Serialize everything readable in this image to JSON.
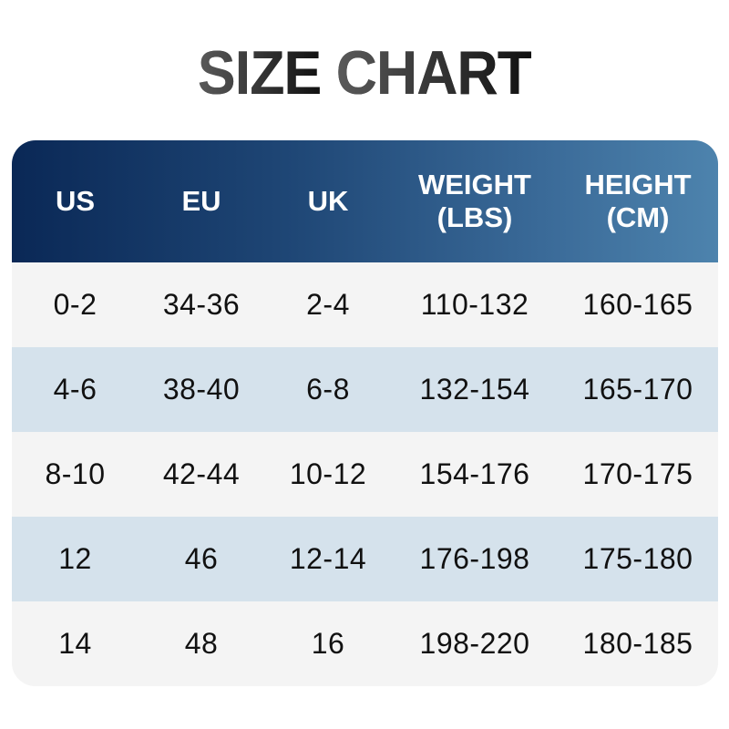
{
  "title": {
    "part1": "SIZE",
    "part2": "CHART"
  },
  "colors": {
    "header_start": "#0a2856",
    "header_end": "#4d83ad",
    "row_light": "#f4f4f4",
    "row_blue": "#d5e2ec"
  },
  "headers": [
    {
      "line1": "US",
      "line2": ""
    },
    {
      "line1": "EU",
      "line2": ""
    },
    {
      "line1": "UK",
      "line2": ""
    },
    {
      "line1": "WEIGHT",
      "line2": "(LBS)"
    },
    {
      "line1": "HEIGHT",
      "line2": "(CM)"
    }
  ],
  "rows": [
    [
      "0-2",
      "34-36",
      "2-4",
      "110-132",
      "160-165"
    ],
    [
      "4-6",
      "38-40",
      "6-8",
      "132-154",
      "165-170"
    ],
    [
      "8-10",
      "42-44",
      "10-12",
      "154-176",
      "170-175"
    ],
    [
      "12",
      "46",
      "12-14",
      "176-198",
      "175-180"
    ],
    [
      "14",
      "48",
      "16",
      "198-220",
      "180-185"
    ]
  ]
}
